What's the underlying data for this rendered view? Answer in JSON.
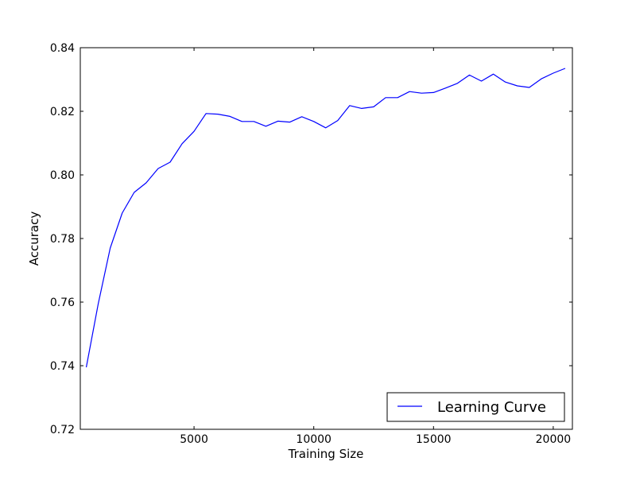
{
  "chart_data": {
    "type": "line",
    "title": "",
    "xlabel": "Training Size",
    "ylabel": "Accuracy",
    "xlim": [
      250,
      20800
    ],
    "ylim": [
      0.72,
      0.84
    ],
    "x_ticks": [
      5000,
      10000,
      15000,
      20000
    ],
    "x_tick_labels": [
      "5000",
      "10000",
      "15000",
      "20000"
    ],
    "y_ticks": [
      0.72,
      0.74,
      0.76,
      0.78,
      0.8,
      0.82,
      0.84
    ],
    "y_tick_labels": [
      "0.72",
      "0.74",
      "0.76",
      "0.78",
      "0.80",
      "0.82",
      "0.84"
    ],
    "grid": false,
    "legend": {
      "position": "lower right",
      "entries": [
        "Learning Curve"
      ]
    },
    "series": [
      {
        "name": "Learning Curve",
        "color": "#0000ff",
        "x": [
          500,
          1000,
          1500,
          2000,
          2500,
          3000,
          3500,
          4000,
          4500,
          5000,
          5500,
          6000,
          6500,
          7000,
          7500,
          8000,
          8500,
          9000,
          9500,
          10000,
          10500,
          11000,
          11500,
          12000,
          12500,
          13000,
          13500,
          14000,
          14500,
          15000,
          15500,
          16000,
          16500,
          17000,
          17500,
          18000,
          18500,
          19000,
          19500,
          20000,
          20500
        ],
        "y": [
          0.7395,
          0.7595,
          0.777,
          0.788,
          0.7945,
          0.7975,
          0.802,
          0.804,
          0.8098,
          0.8137,
          0.8193,
          0.8191,
          0.8184,
          0.8168,
          0.8168,
          0.8153,
          0.8169,
          0.8166,
          0.8183,
          0.8168,
          0.8148,
          0.8171,
          0.8218,
          0.8209,
          0.8214,
          0.8243,
          0.8243,
          0.8262,
          0.8257,
          0.8259,
          0.8273,
          0.8288,
          0.8314,
          0.8295,
          0.8317,
          0.8292,
          0.828,
          0.8275,
          0.8302,
          0.832,
          0.8335
        ]
      }
    ]
  }
}
